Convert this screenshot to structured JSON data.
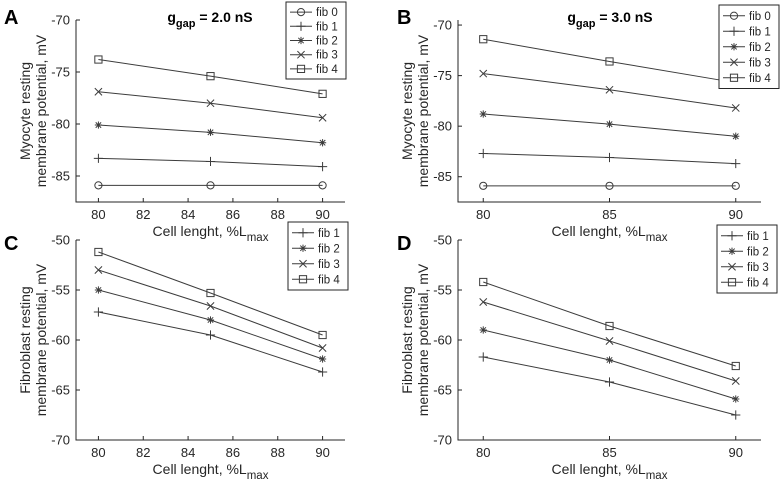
{
  "chart_data": [
    {
      "type": "line",
      "panel": "A",
      "title_main": "g",
      "title_sub": "gap",
      "title_tail": " = 2.0 nS",
      "xlabel": "Cell lenght, %L",
      "xlabel_sub": "max",
      "ylabel_line1": "Myocyte resting",
      "ylabel_line2": "membrane potential, mV",
      "xlim": [
        79,
        91
      ],
      "ylim": [
        -87.5,
        -70
      ],
      "xticks": [
        80,
        82,
        84,
        86,
        88,
        90
      ],
      "yticks": [
        -85,
        -80,
        -75,
        -70
      ],
      "legend_position": "top-right",
      "x": [
        80,
        85,
        90
      ],
      "series": [
        {
          "name": "fib 0",
          "marker": "circle",
          "values": [
            -85.9,
            -85.9,
            -85.9
          ]
        },
        {
          "name": "fib 1",
          "marker": "plus",
          "values": [
            -83.3,
            -83.6,
            -84.1
          ]
        },
        {
          "name": "fib 2",
          "marker": "star",
          "values": [
            -80.1,
            -80.8,
            -81.8
          ]
        },
        {
          "name": "fib 3",
          "marker": "x",
          "values": [
            -76.9,
            -78.0,
            -79.4
          ]
        },
        {
          "name": "fib 4",
          "marker": "square",
          "values": [
            -73.8,
            -75.4,
            -77.1
          ]
        }
      ]
    },
    {
      "type": "line",
      "panel": "B",
      "title_main": "g",
      "title_sub": "gap",
      "title_tail": " = 3.0 nS",
      "xlabel": "Cell lenght, %L",
      "xlabel_sub": "max",
      "ylabel_line1": "Myocyte resting",
      "ylabel_line2": "membrane potential, mV",
      "xlim": [
        79,
        91
      ],
      "ylim": [
        -87.5,
        -69.5
      ],
      "xticks": [
        80,
        85,
        90
      ],
      "yticks": [
        -85,
        -80,
        -75,
        -70
      ],
      "legend_position": "top-right",
      "x": [
        80,
        85,
        90
      ],
      "series": [
        {
          "name": "fib 0",
          "marker": "circle",
          "values": [
            -85.9,
            -85.9,
            -85.9
          ]
        },
        {
          "name": "fib 1",
          "marker": "plus",
          "values": [
            -82.7,
            -83.1,
            -83.7
          ]
        },
        {
          "name": "fib 2",
          "marker": "star",
          "values": [
            -78.8,
            -79.8,
            -81.0
          ]
        },
        {
          "name": "fib 3",
          "marker": "x",
          "values": [
            -74.8,
            -76.4,
            -78.2
          ]
        },
        {
          "name": "fib 4",
          "marker": "square",
          "values": [
            -71.4,
            -73.6,
            -75.7
          ]
        }
      ]
    },
    {
      "type": "line",
      "panel": "C",
      "xlabel": "Cell lenght, %L",
      "xlabel_sub": "max",
      "ylabel_line1": "Fibroblast resting",
      "ylabel_line2": "membrane potential, mV",
      "xlim": [
        79,
        91
      ],
      "ylim": [
        -70,
        -50
      ],
      "xticks": [
        80,
        82,
        84,
        86,
        88,
        90
      ],
      "yticks": [
        -70,
        -65,
        -60,
        -55,
        -50
      ],
      "legend_position": "top-right",
      "x": [
        80,
        85,
        90
      ],
      "series": [
        {
          "name": "fib 1",
          "marker": "plus",
          "values": [
            -57.2,
            -59.5,
            -63.2
          ]
        },
        {
          "name": "fib 2",
          "marker": "star",
          "values": [
            -55.0,
            -58.0,
            -61.9
          ]
        },
        {
          "name": "fib 3",
          "marker": "x",
          "values": [
            -53.0,
            -56.6,
            -60.8
          ]
        },
        {
          "name": "fib 4",
          "marker": "square",
          "values": [
            -51.2,
            -55.3,
            -59.5
          ]
        }
      ]
    },
    {
      "type": "line",
      "panel": "D",
      "xlabel": "Cell lenght, %L",
      "xlabel_sub": "max",
      "ylabel_line1": "Fibroblast resting",
      "ylabel_line2": "membrane potential, mV",
      "xlim": [
        79,
        91
      ],
      "ylim": [
        -70,
        -50
      ],
      "xticks": [
        80,
        85,
        90
      ],
      "yticks": [
        -70,
        -65,
        -60,
        -55,
        -50
      ],
      "legend_position": "top-right",
      "x": [
        80,
        85,
        90
      ],
      "series": [
        {
          "name": "fib 1",
          "marker": "plus",
          "values": [
            -61.7,
            -64.2,
            -67.5
          ]
        },
        {
          "name": "fib 2",
          "marker": "star",
          "values": [
            -59.0,
            -62.0,
            -65.9
          ]
        },
        {
          "name": "fib 3",
          "marker": "x",
          "values": [
            -56.2,
            -60.1,
            -64.1
          ]
        },
        {
          "name": "fib 4",
          "marker": "square",
          "values": [
            -54.2,
            -58.6,
            -62.6
          ]
        }
      ]
    }
  ]
}
